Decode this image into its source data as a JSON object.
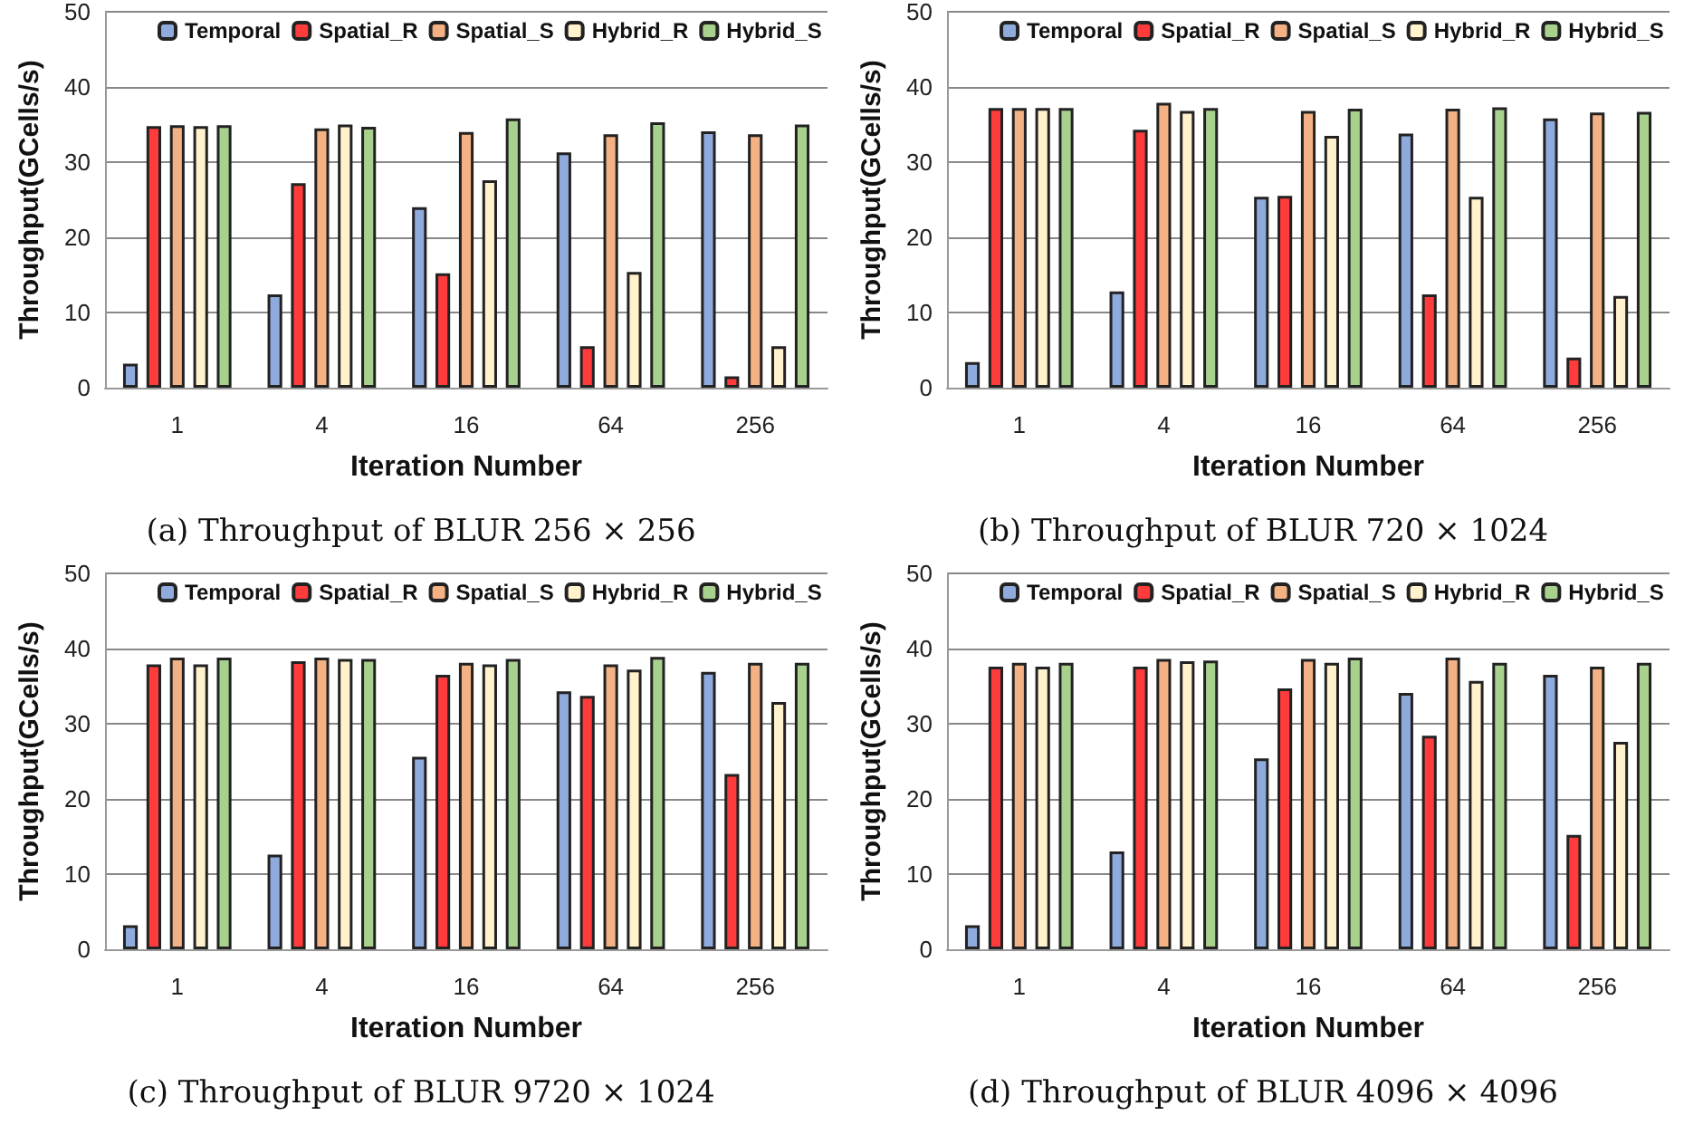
{
  "chart_data": [
    {
      "type": "bar",
      "categories": [
        "1",
        "4",
        "16",
        "64",
        "256"
      ],
      "xlabel": "Iteration Number",
      "ylabel": "Throughput(GCells/s)",
      "ylim": [
        0,
        50
      ],
      "yticks": [
        0,
        10,
        20,
        30,
        40,
        50
      ],
      "grid": "y",
      "legend": "top",
      "annotations": [
        "(a) Throughput of BLUR 256 × 256"
      ],
      "series": [
        {
          "name": "Temporal",
          "color": "#8faadc",
          "values": [
            3.2,
            12.4,
            24,
            31.3,
            34.1
          ]
        },
        {
          "name": "Spatial_R",
          "color": "#ff3b3b",
          "values": [
            34.8,
            27.2,
            15.2,
            5.5,
            1.5
          ]
        },
        {
          "name": "Spatial_S",
          "color": "#f4b183",
          "values": [
            34.9,
            34.5,
            34,
            33.7,
            33.7
          ]
        },
        {
          "name": "Hybrid_R",
          "color": "#fff2cc",
          "values": [
            34.8,
            35,
            27.6,
            15.4,
            5.5
          ]
        },
        {
          "name": "Hybrid_S",
          "color": "#a9d18e",
          "values": [
            34.9,
            34.7,
            35.8,
            35.3,
            35
          ]
        }
      ]
    },
    {
      "type": "bar",
      "categories": [
        "1",
        "4",
        "16",
        "64",
        "256"
      ],
      "xlabel": "Iteration Number",
      "ylabel": "Throughput(GCells/s)",
      "ylim": [
        0,
        50
      ],
      "yticks": [
        0,
        10,
        20,
        30,
        40,
        50
      ],
      "grid": "y",
      "legend": "top",
      "annotations": [
        "(b) Throughput of BLUR 720 × 1024"
      ],
      "series": [
        {
          "name": "Temporal",
          "color": "#8faadc",
          "values": [
            3.4,
            12.8,
            25.4,
            33.8,
            35.8
          ]
        },
        {
          "name": "Spatial_R",
          "color": "#ff3b3b",
          "values": [
            37.2,
            34.3,
            25.5,
            12.4,
            4
          ]
        },
        {
          "name": "Spatial_S",
          "color": "#f4b183",
          "values": [
            37.2,
            37.9,
            36.8,
            37.1,
            36.6
          ]
        },
        {
          "name": "Hybrid_R",
          "color": "#fff2cc",
          "values": [
            37.2,
            36.8,
            33.5,
            25.4,
            12.2
          ]
        },
        {
          "name": "Hybrid_S",
          "color": "#a9d18e",
          "values": [
            37.2,
            37.2,
            37.1,
            37.3,
            36.7
          ]
        }
      ]
    },
    {
      "type": "bar",
      "categories": [
        "1",
        "4",
        "16",
        "64",
        "256"
      ],
      "xlabel": "Iteration Number",
      "ylabel": "Throughput(GCells/s)",
      "ylim": [
        0,
        50
      ],
      "yticks": [
        0,
        10,
        20,
        30,
        40,
        50
      ],
      "grid": "y",
      "legend": "top",
      "annotations": [
        "(c) Throughput of BLUR 9720 × 1024"
      ],
      "series": [
        {
          "name": "Temporal",
          "color": "#8faadc",
          "values": [
            3.2,
            12.6,
            25.6,
            34.3,
            36.9
          ]
        },
        {
          "name": "Spatial_R",
          "color": "#ff3b3b",
          "values": [
            37.9,
            38.3,
            36.5,
            33.7,
            23.3
          ]
        },
        {
          "name": "Spatial_S",
          "color": "#f4b183",
          "values": [
            38.8,
            38.8,
            38.1,
            37.9,
            38.1
          ]
        },
        {
          "name": "Hybrid_R",
          "color": "#fff2cc",
          "values": [
            37.9,
            38.6,
            37.9,
            37.2,
            32.9
          ]
        },
        {
          "name": "Hybrid_S",
          "color": "#a9d18e",
          "values": [
            38.8,
            38.6,
            38.6,
            38.9,
            38.1
          ]
        }
      ]
    },
    {
      "type": "bar",
      "categories": [
        "1",
        "4",
        "16",
        "64",
        "256"
      ],
      "xlabel": "Iteration Number",
      "ylabel": "Throughput(GCells/s)",
      "ylim": [
        0,
        50
      ],
      "yticks": [
        0,
        10,
        20,
        30,
        40,
        50
      ],
      "grid": "y",
      "legend": "top",
      "annotations": [
        "(d) Throughput of BLUR 4096 × 4096"
      ],
      "series": [
        {
          "name": "Temporal",
          "color": "#8faadc",
          "values": [
            3.2,
            13,
            25.4,
            34.1,
            36.5
          ]
        },
        {
          "name": "Spatial_R",
          "color": "#ff3b3b",
          "values": [
            37.6,
            37.6,
            34.7,
            28.4,
            15.2
          ]
        },
        {
          "name": "Spatial_S",
          "color": "#f4b183",
          "values": [
            38.1,
            38.6,
            38.6,
            38.8,
            37.6
          ]
        },
        {
          "name": "Hybrid_R",
          "color": "#fff2cc",
          "values": [
            37.6,
            38.3,
            38.1,
            35.7,
            27.6
          ]
        },
        {
          "name": "Hybrid_S",
          "color": "#a9d18e",
          "values": [
            38.1,
            38.4,
            38.8,
            38.1,
            38.1
          ]
        }
      ]
    }
  ]
}
